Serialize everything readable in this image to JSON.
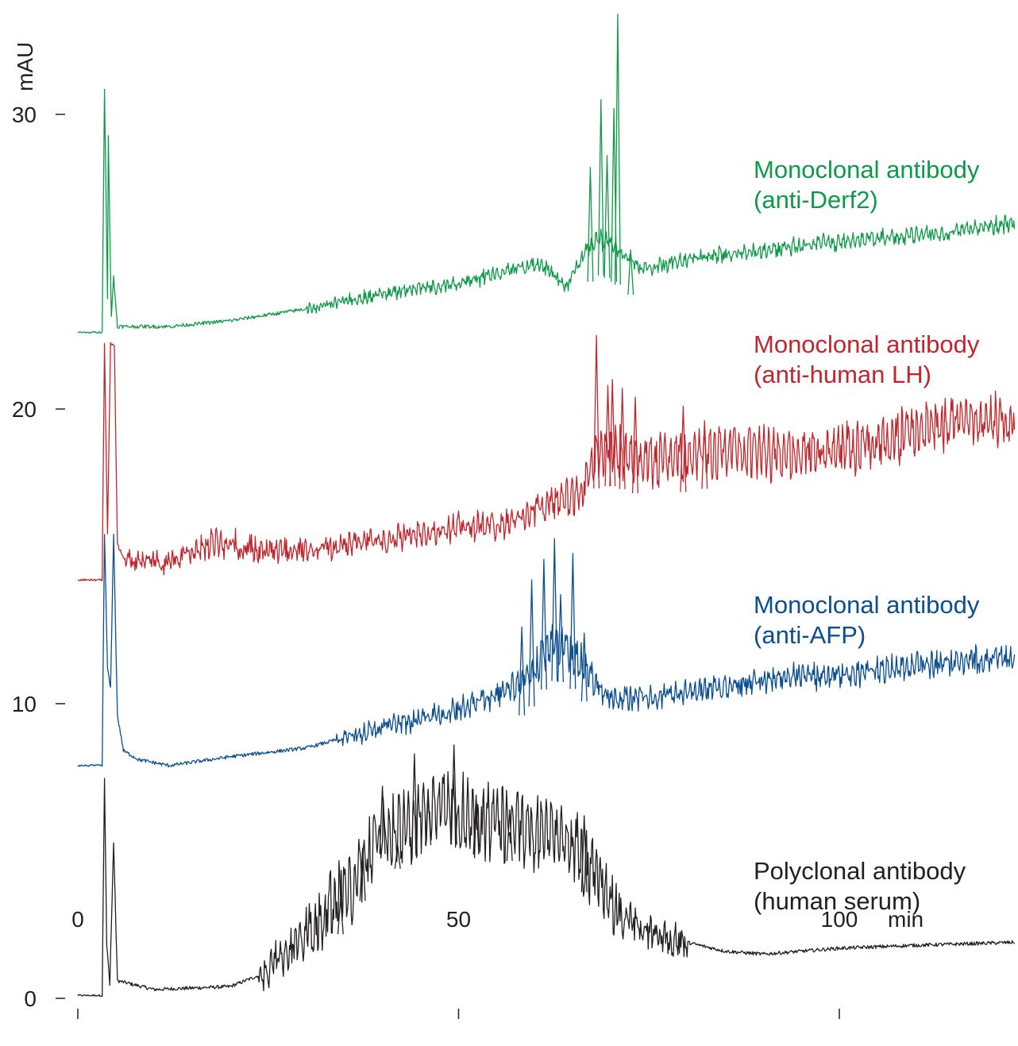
{
  "chart_data": {
    "type": "line",
    "title": "",
    "xlabel": "min",
    "ylabel": "mAU",
    "xlim": [
      0,
      123
    ],
    "ylim": [
      0,
      33
    ],
    "xticks": [
      0,
      50,
      100
    ],
    "yticks": [
      0,
      10,
      20,
      30
    ],
    "grid": false,
    "legend": "inline labels at right of each trace",
    "series": [
      {
        "name": "Polyclonal antibody (human serum)",
        "label_lines": [
          "Polyclonal antibody",
          "(human serum)"
        ],
        "color": "#231f20",
        "baseline": 0.1,
        "points": [
          [
            0,
            0.1
          ],
          [
            3.2,
            0.1
          ],
          [
            3.5,
            7.5
          ],
          [
            3.8,
            1.8
          ],
          [
            4.2,
            0.5
          ],
          [
            4.7,
            5.3
          ],
          [
            5.2,
            0.6
          ],
          [
            10,
            0.3
          ],
          [
            20,
            0.4
          ],
          [
            25,
            0.9
          ],
          [
            27,
            1.6
          ],
          [
            30,
            2.2
          ],
          [
            32,
            2.7
          ],
          [
            34,
            3.3
          ],
          [
            36,
            3.6
          ],
          [
            38,
            4.9
          ],
          [
            40,
            6.1
          ],
          [
            42,
            5.6
          ],
          [
            44,
            6.0
          ],
          [
            46,
            6.4
          ],
          [
            48,
            6.7
          ],
          [
            50,
            6.3
          ],
          [
            52,
            6.1
          ],
          [
            54,
            6.0
          ],
          [
            56,
            5.9
          ],
          [
            58,
            5.8
          ],
          [
            60,
            5.7
          ],
          [
            62,
            5.6
          ],
          [
            64,
            5.5
          ],
          [
            66,
            5.0
          ],
          [
            68,
            4.2
          ],
          [
            70,
            3.4
          ],
          [
            72,
            2.7
          ],
          [
            74,
            2.4
          ],
          [
            76,
            2.1
          ],
          [
            80,
            1.9
          ],
          [
            85,
            1.6
          ],
          [
            90,
            1.5
          ],
          [
            95,
            1.6
          ],
          [
            100,
            1.7
          ],
          [
            110,
            1.8
          ],
          [
            123,
            1.9
          ]
        ],
        "peaks": [
          [
            40.0,
            7.2
          ],
          [
            44.2,
            8.3
          ],
          [
            46.0,
            7.1
          ],
          [
            49.4,
            8.6
          ],
          [
            52.3,
            6.9
          ],
          [
            56.7,
            6.4
          ],
          [
            66.5,
            6.2
          ],
          [
            42.0,
            5.2
          ],
          [
            37.4,
            5.1
          ],
          [
            34.5,
            3.4
          ]
        ]
      },
      {
        "name": "Monoclonal antibody (anti-AFP)",
        "label_lines": [
          "Monoclonal antibody",
          "(anti-AFP)"
        ],
        "color": "#0b4f8e",
        "baseline": 7.9,
        "points": [
          [
            0,
            7.9
          ],
          [
            3.2,
            7.9
          ],
          [
            3.5,
            15.8
          ],
          [
            3.9,
            11.2
          ],
          [
            4.3,
            10.5
          ],
          [
            4.7,
            15.8
          ],
          [
            5.2,
            9.6
          ],
          [
            6,
            8.4
          ],
          [
            8,
            8.1
          ],
          [
            12,
            7.9
          ],
          [
            20,
            8.2
          ],
          [
            30,
            8.5
          ],
          [
            40,
            9.2
          ],
          [
            45,
            9.5
          ],
          [
            50,
            9.8
          ],
          [
            54,
            10.2
          ],
          [
            57,
            10.5
          ],
          [
            60,
            11.2
          ],
          [
            62,
            12.0
          ],
          [
            64,
            11.9
          ],
          [
            66,
            11.5
          ],
          [
            68,
            10.6
          ],
          [
            70,
            10.2
          ],
          [
            75,
            10.2
          ],
          [
            80,
            10.4
          ],
          [
            90,
            10.8
          ],
          [
            100,
            11.0
          ],
          [
            110,
            11.3
          ],
          [
            123,
            11.6
          ]
        ],
        "peaks": [
          [
            59.6,
            14.2
          ],
          [
            61.2,
            14.9
          ],
          [
            62.6,
            15.6
          ],
          [
            65.0,
            15.1
          ],
          [
            63.4,
            13.7
          ],
          [
            58.3,
            12.6
          ],
          [
            66.5,
            12.4
          ]
        ]
      },
      {
        "name": "Monoclonal antibody (anti-human LH)",
        "label_lines": [
          "Monoclonal antibody",
          "(anti-human LH)"
        ],
        "color": "#c0272d",
        "baseline": 14.2,
        "points": [
          [
            0,
            14.2
          ],
          [
            3.2,
            14.2
          ],
          [
            3.5,
            22.2
          ],
          [
            3.9,
            15.8
          ],
          [
            4.3,
            22.2
          ],
          [
            4.8,
            22.2
          ],
          [
            5.2,
            15.4
          ],
          [
            6,
            15.0
          ],
          [
            8,
            14.8
          ],
          [
            12,
            14.8
          ],
          [
            18,
            15.5
          ],
          [
            25,
            15.1
          ],
          [
            30,
            15.2
          ],
          [
            40,
            15.6
          ],
          [
            50,
            16.0
          ],
          [
            56,
            16.1
          ],
          [
            60,
            16.6
          ],
          [
            64,
            17.0
          ],
          [
            66,
            17.1
          ],
          [
            68,
            18.5
          ],
          [
            70,
            18.6
          ],
          [
            75,
            18.2
          ],
          [
            80,
            18.4
          ],
          [
            85,
            18.6
          ],
          [
            90,
            18.5
          ],
          [
            95,
            18.4
          ],
          [
            100,
            18.6
          ],
          [
            105,
            18.8
          ],
          [
            110,
            19.3
          ],
          [
            115,
            19.6
          ],
          [
            120,
            19.7
          ],
          [
            123,
            19.6
          ]
        ],
        "peaks": [
          [
            68.1,
            22.5
          ],
          [
            69.6,
            20.8
          ],
          [
            70.2,
            21.0
          ],
          [
            71.5,
            20.7
          ],
          [
            79.5,
            20.1
          ],
          [
            82.3,
            19.6
          ],
          [
            73.2,
            20.4
          ]
        ]
      },
      {
        "name": "Monoclonal antibody (anti-Derf2)",
        "label_lines": [
          "Monoclonal antibody",
          "(anti-Derf2)"
        ],
        "color": "#0e9a48",
        "baseline": 22.6,
        "points": [
          [
            0,
            22.6
          ],
          [
            3.2,
            22.6
          ],
          [
            3.5,
            30.9
          ],
          [
            3.9,
            23.8
          ],
          [
            4.0,
            29.3
          ],
          [
            4.4,
            23.1
          ],
          [
            4.7,
            24.5
          ],
          [
            5.2,
            22.8
          ],
          [
            8,
            22.8
          ],
          [
            12,
            22.8
          ],
          [
            20,
            23.0
          ],
          [
            30,
            23.4
          ],
          [
            40,
            23.9
          ],
          [
            50,
            24.3
          ],
          [
            55,
            24.6
          ],
          [
            60,
            24.9
          ],
          [
            62,
            24.7
          ],
          [
            64,
            24.1
          ],
          [
            66,
            25.0
          ],
          [
            68,
            25.8
          ],
          [
            70,
            25.6
          ],
          [
            72,
            25.2
          ],
          [
            74,
            24.8
          ],
          [
            76,
            24.8
          ],
          [
            80,
            25.1
          ],
          [
            90,
            25.4
          ],
          [
            100,
            25.7
          ],
          [
            110,
            25.9
          ],
          [
            123,
            26.3
          ]
        ],
        "peaks": [
          [
            68.7,
            30.5
          ],
          [
            70.4,
            30.2
          ],
          [
            70.9,
            33.4
          ],
          [
            67.3,
            28.2
          ],
          [
            69.5,
            28.6
          ],
          [
            72.6,
            25.4
          ]
        ]
      }
    ]
  }
}
